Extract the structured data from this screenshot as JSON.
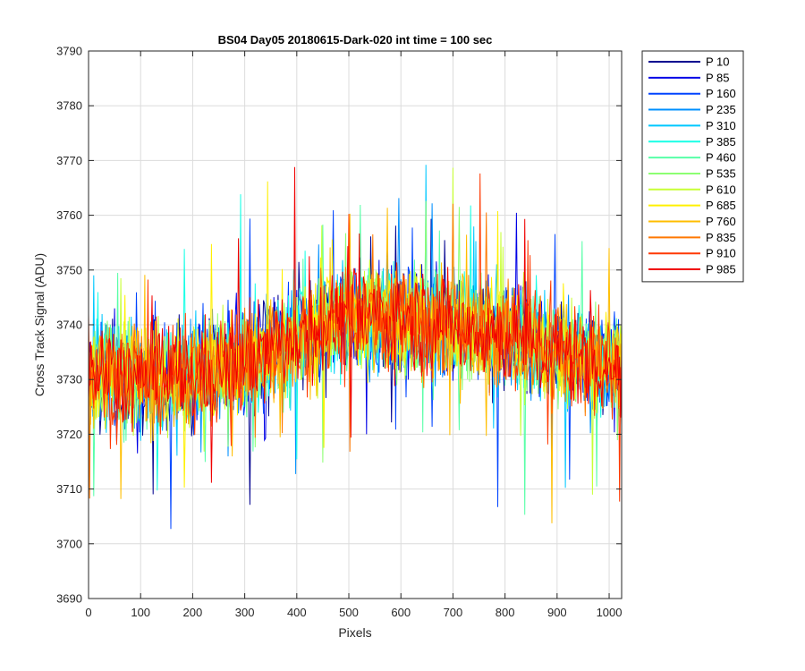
{
  "chart_data": {
    "type": "line",
    "title": "BS04 Day05 20180615-Dark-020 int time = 100 sec",
    "xlabel": "Pixels",
    "ylabel": "Cross Track Signal (ADU)",
    "xlim": [
      0,
      1024
    ],
    "ylim": [
      3690,
      3790
    ],
    "xticks": [
      0,
      100,
      200,
      300,
      400,
      500,
      600,
      700,
      800,
      900,
      1000
    ],
    "yticks": [
      3690,
      3700,
      3710,
      3720,
      3730,
      3740,
      3750,
      3760,
      3770,
      3780,
      3790
    ],
    "grid": true,
    "legend_placement": "outside-top-right",
    "profile_note_values": {
      "x": [
        0,
        100,
        200,
        300,
        400,
        500,
        600,
        700,
        800,
        900,
        1024
      ],
      "y_mean": [
        3731,
        3730,
        3731,
        3733,
        3738,
        3742,
        3741,
        3740,
        3738,
        3735,
        3732
      ],
      "noise_halfwidth": 15
    },
    "series": [
      {
        "name": "P 10",
        "color": "#00008f"
      },
      {
        "name": "P 85",
        "color": "#0000e6"
      },
      {
        "name": "P 160",
        "color": "#0044ff"
      },
      {
        "name": "P 235",
        "color": "#0090ff"
      },
      {
        "name": "P 310",
        "color": "#00c8ff"
      },
      {
        "name": "P 385",
        "color": "#18ffe6"
      },
      {
        "name": "P 460",
        "color": "#58ffa8"
      },
      {
        "name": "P 535",
        "color": "#8cff72"
      },
      {
        "name": "P 610",
        "color": "#c8ff36"
      },
      {
        "name": "P 685",
        "color": "#fff000"
      },
      {
        "name": "P 760",
        "color": "#ffbe00"
      },
      {
        "name": "P 835",
        "color": "#ff7800"
      },
      {
        "name": "P 910",
        "color": "#ff3800"
      },
      {
        "name": "P 985",
        "color": "#f00000"
      }
    ]
  }
}
